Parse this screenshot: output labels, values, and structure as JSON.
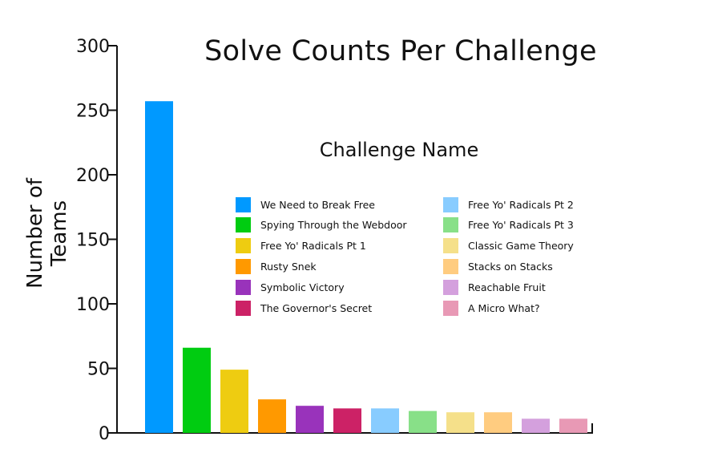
{
  "chart_data": {
    "type": "bar",
    "title": "Solve Counts Per Challenge",
    "xlabel": "",
    "ylabel": "Number of Teams",
    "ylim": [
      0,
      300
    ],
    "yticks": [
      0,
      50,
      100,
      150,
      200,
      250,
      300
    ],
    "grid": false,
    "legend_title": "Challenge Name",
    "legend_placement": "center",
    "categories": [
      "We Need to Break Free",
      "Spying Through the Webdoor",
      "Free Yo' Radicals Pt 1",
      "Rusty Snek",
      "Symbolic Victory",
      "The Governor's Secret",
      "Free Yo' Radicals Pt 2",
      "Free Yo' Radicals Pt 3",
      "Classic Game Theory",
      "Stacks on Stacks",
      "Reachable Fruit",
      "A Micro What?"
    ],
    "values": [
      257,
      66,
      49,
      26,
      21,
      19,
      19,
      17,
      16,
      16,
      11,
      11
    ],
    "colors": [
      "#0099ff",
      "#00cc11",
      "#eecc11",
      "#ff9900",
      "#9933bb",
      "#cc2266",
      "#88ccff",
      "#88e088",
      "#f5e08a",
      "#ffcc80",
      "#d4a0dd",
      "#e899b5"
    ]
  }
}
